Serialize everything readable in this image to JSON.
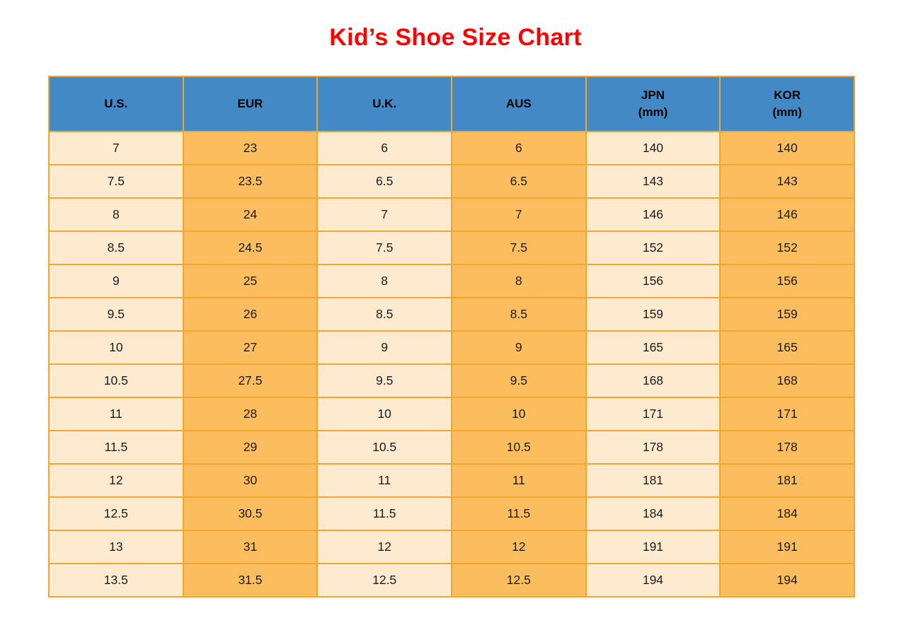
{
  "title": "Kid’s Shoe Size Chart",
  "colors": {
    "page-bg": "#ffffff",
    "title-red": "#fe0000",
    "header-blue": "#4289c6",
    "cell-light": "#fdeacf",
    "cell-orange": "#fcbd5e",
    "border-orange": "#f2a62f",
    "header-text": "#000000",
    "text-dark": "#1c1c1c"
  },
  "header_display": [
    {
      "line1": "U.S.",
      "line2": ""
    },
    {
      "line1": "EUR",
      "line2": ""
    },
    {
      "line1": "U.K.",
      "line2": ""
    },
    {
      "line1": "AUS",
      "line2": ""
    },
    {
      "line1": "JPN",
      "line2": "(mm)"
    },
    {
      "line1": "KOR",
      "line2": "(mm)"
    }
  ],
  "chart_data": {
    "type": "table",
    "title": "Kid’s Shoe Size Chart",
    "columns": [
      "U.S.",
      "EUR",
      "U.K.",
      "AUS",
      "JPN (mm)",
      "KOR (mm)"
    ],
    "rows": [
      [
        "7",
        "23",
        "6",
        "6",
        "140",
        "140"
      ],
      [
        "7.5",
        "23.5",
        "6.5",
        "6.5",
        "143",
        "143"
      ],
      [
        "8",
        "24",
        "7",
        "7",
        "146",
        "146"
      ],
      [
        "8.5",
        "24.5",
        "7.5",
        "7.5",
        "152",
        "152"
      ],
      [
        "9",
        "25",
        "8",
        "8",
        "156",
        "156"
      ],
      [
        "9.5",
        "26",
        "8.5",
        "8.5",
        "159",
        "159"
      ],
      [
        "10",
        "27",
        "9",
        "9",
        "165",
        "165"
      ],
      [
        "10.5",
        "27.5",
        "9.5",
        "9.5",
        "168",
        "168"
      ],
      [
        "11",
        "28",
        "10",
        "10",
        "171",
        "171"
      ],
      [
        "11.5",
        "29",
        "10.5",
        "10.5",
        "178",
        "178"
      ],
      [
        "12",
        "30",
        "11",
        "11",
        "181",
        "181"
      ],
      [
        "12.5",
        "30.5",
        "11.5",
        "11.5",
        "184",
        "184"
      ],
      [
        "13",
        "31",
        "12",
        "12",
        "191",
        "191"
      ],
      [
        "13.5",
        "31.5",
        "12.5",
        "12.5",
        "194",
        "194"
      ]
    ],
    "column_fill_pattern": [
      "light",
      "orange",
      "light",
      "orange",
      "light",
      "orange"
    ],
    "grid": true,
    "legend_position": "none"
  }
}
